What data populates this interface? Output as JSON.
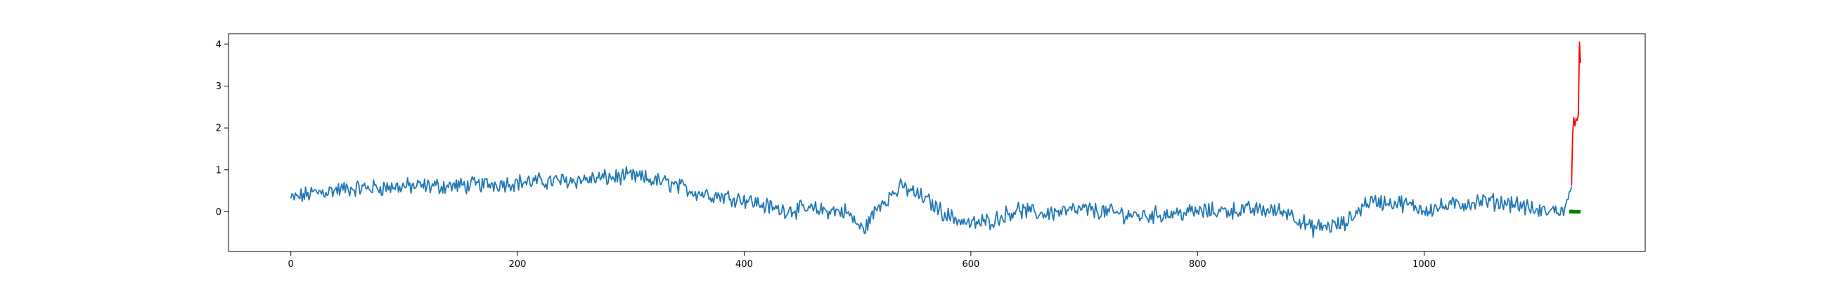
{
  "chart_data": {
    "type": "line",
    "title": "",
    "xlabel": "",
    "ylabel": "",
    "xlim": [
      -55,
      1195
    ],
    "ylim": [
      -0.95,
      4.25
    ],
    "xticks": [
      0,
      200,
      400,
      600,
      800,
      1000
    ],
    "xtick_labels": [
      "0",
      "200",
      "400",
      "600",
      "800",
      "1000"
    ],
    "yticks": [
      0,
      1,
      2,
      3,
      4
    ],
    "ytick_labels": [
      "0",
      "1",
      "2",
      "3",
      "4"
    ],
    "grid": false,
    "legend": "none",
    "trend_anchors": [
      [
        0,
        0.3
      ],
      [
        20,
        0.45
      ],
      [
        50,
        0.55
      ],
      [
        100,
        0.6
      ],
      [
        150,
        0.62
      ],
      [
        200,
        0.7
      ],
      [
        250,
        0.75
      ],
      [
        300,
        0.85
      ],
      [
        330,
        0.7
      ],
      [
        360,
        0.45
      ],
      [
        400,
        0.3
      ],
      [
        430,
        0.05
      ],
      [
        460,
        0.05
      ],
      [
        490,
        0.0
      ],
      [
        505,
        -0.45
      ],
      [
        520,
        0.2
      ],
      [
        540,
        0.6
      ],
      [
        560,
        0.3
      ],
      [
        580,
        -0.1
      ],
      [
        600,
        -0.3
      ],
      [
        620,
        -0.2
      ],
      [
        640,
        0.05
      ],
      [
        660,
        -0.05
      ],
      [
        700,
        0.05
      ],
      [
        750,
        -0.1
      ],
      [
        800,
        0.0
      ],
      [
        850,
        0.05
      ],
      [
        880,
        0.0
      ],
      [
        900,
        -0.4
      ],
      [
        930,
        -0.3
      ],
      [
        950,
        0.25
      ],
      [
        980,
        0.2
      ],
      [
        1000,
        0.05
      ],
      [
        1050,
        0.25
      ],
      [
        1080,
        0.2
      ],
      [
        1100,
        0.0
      ],
      [
        1125,
        0.05
      ],
      [
        1130,
        0.6
      ]
    ],
    "series": [
      {
        "role": "history",
        "color": "#1f77b4",
        "x_start": 0,
        "x_end": 1130,
        "noise_amplitude": 0.16
      },
      {
        "role": "forecast",
        "color": "#ff0000",
        "x": [
          1130,
          1131,
          1132,
          1133,
          1134,
          1135,
          1136,
          1137,
          1138
        ],
        "y": [
          0.62,
          1.85,
          2.25,
          2.05,
          2.22,
          2.18,
          2.3,
          4.05,
          3.55
        ]
      },
      {
        "role": "baseline",
        "color": "#008000",
        "x": [
          1128,
          1129,
          1130,
          1131,
          1132,
          1133,
          1134,
          1135,
          1136,
          1137,
          1138
        ],
        "y": [
          0.0,
          0.0,
          0.01,
          0.0,
          0.0,
          0.0,
          0.0,
          0.0,
          0.0,
          0.0,
          0.0
        ]
      }
    ]
  }
}
